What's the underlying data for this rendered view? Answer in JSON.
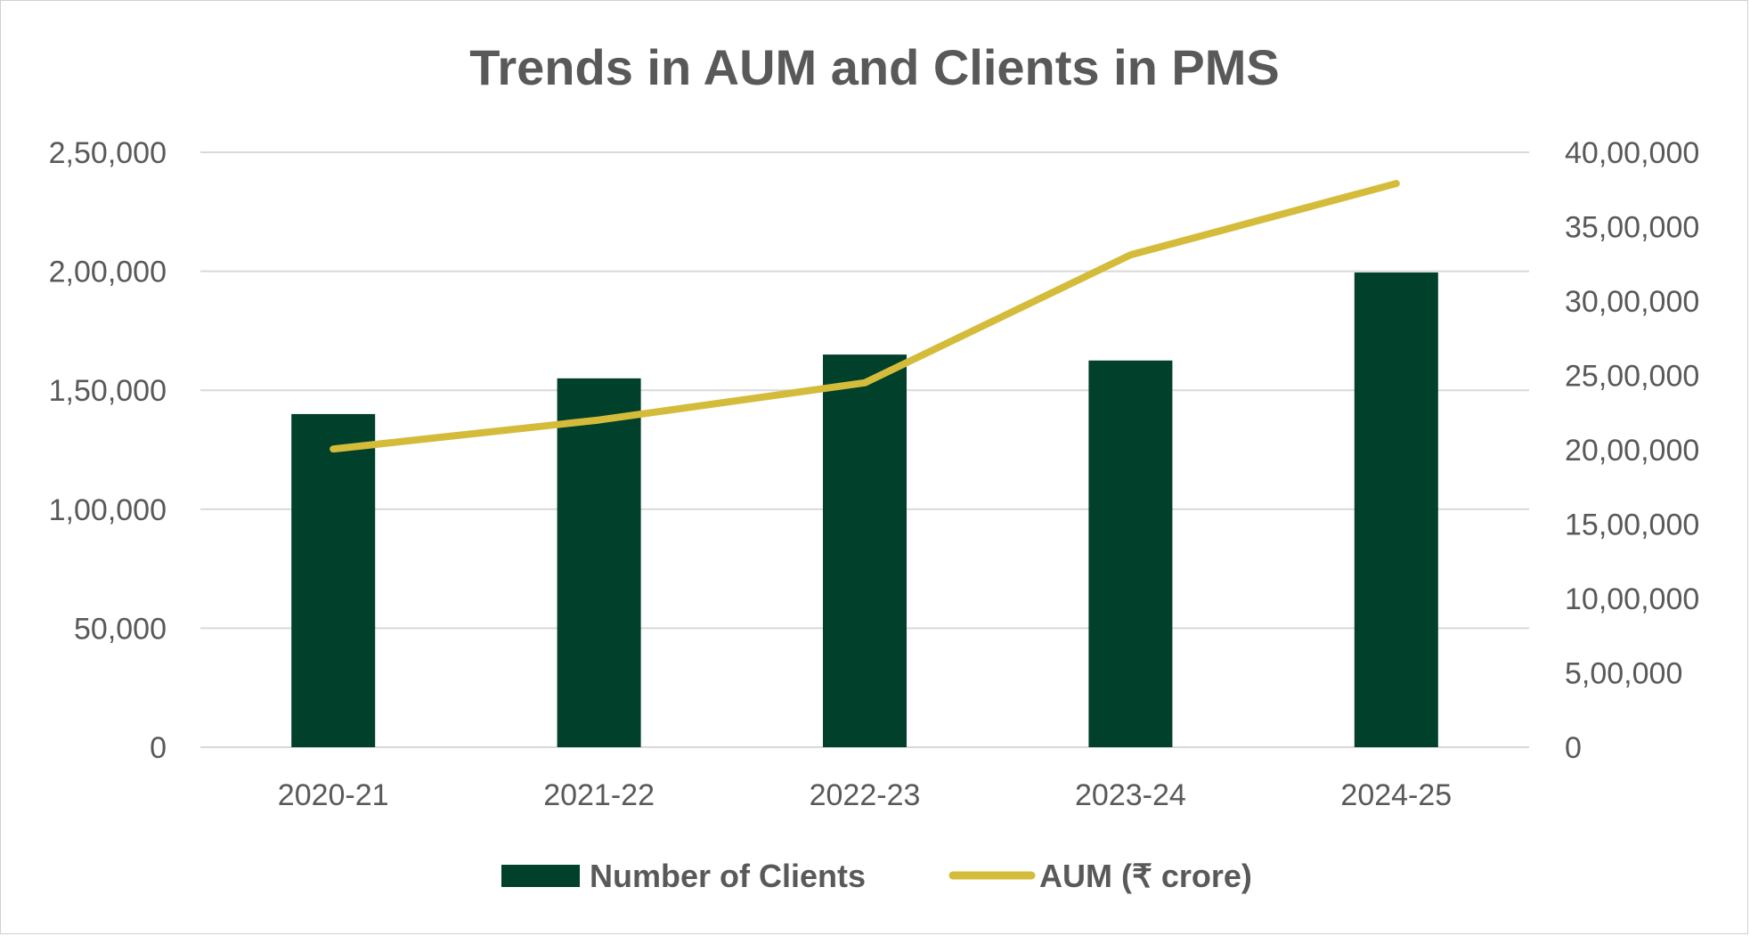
{
  "chart_data": {
    "type": "bar+line",
    "title": "Trends in AUM and Clients in PMS",
    "categories": [
      "2020-21",
      "2021-22",
      "2022-23",
      "2023-24",
      "2024-25"
    ],
    "series": [
      {
        "name": "Number of Clients",
        "type": "bar",
        "axis": "left",
        "color": "#01402A",
        "values": [
          140000,
          155000,
          165000,
          162500,
          199500
        ]
      },
      {
        "name": "AUM (₹ crore)",
        "type": "line",
        "axis": "right",
        "color": "#D4BC3A",
        "values": [
          2005000,
          2200000,
          2450000,
          3310000,
          3790000
        ]
      }
    ],
    "y_left": {
      "min": 0,
      "max": 250000,
      "ticks": [
        0,
        50000,
        100000,
        150000,
        200000,
        250000
      ],
      "tick_labels": [
        "0",
        "50,000",
        "1,00,000",
        "1,50,000",
        "2,00,000",
        "2,50,000"
      ]
    },
    "y_right": {
      "min": 0,
      "max": 4000000,
      "ticks": [
        0,
        500000,
        1000000,
        1500000,
        2000000,
        2500000,
        3000000,
        3500000,
        4000000
      ],
      "tick_labels": [
        "0",
        "5,00,000",
        "10,00,000",
        "15,00,000",
        "20,00,000",
        "25,00,000",
        "30,00,000",
        "35,00,000",
        "40,00,000"
      ]
    },
    "grid": true,
    "gridline_color": "#d9d9d9",
    "legend_position": "bottom"
  }
}
